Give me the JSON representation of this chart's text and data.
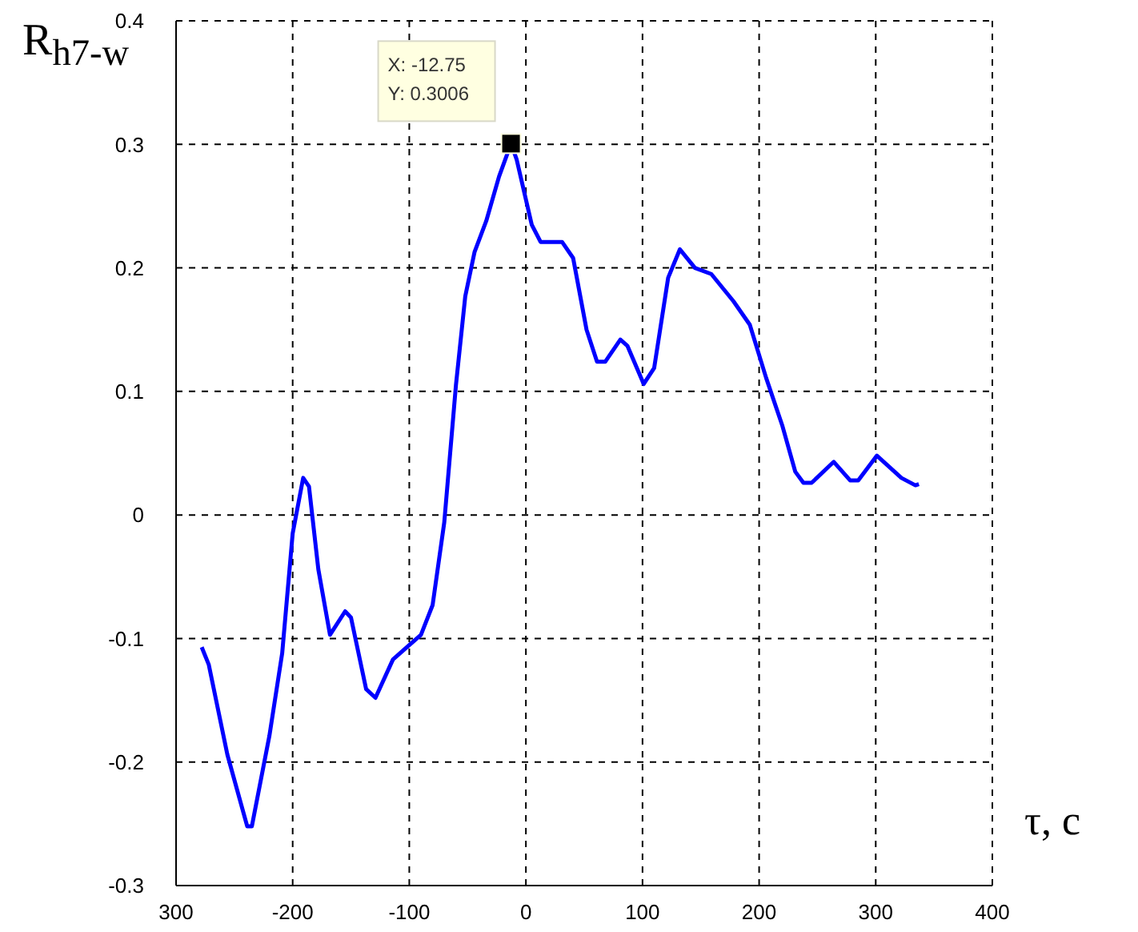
{
  "chart_data": {
    "type": "line",
    "ylabel": "R$_{h7-w}$",
    "xlabel": "τ, c",
    "x": [
      -278,
      -272,
      -256,
      -239,
      -235,
      -220,
      -209,
      -200,
      -191,
      -186,
      -178,
      -168,
      -155,
      -150,
      -137,
      -129,
      -114,
      -90,
      -80,
      -70,
      -60,
      -52,
      -44,
      -34,
      -23,
      -12.75,
      -8,
      5,
      12.6,
      31,
      40.5,
      52,
      61,
      68,
      81,
      87,
      101,
      110,
      122,
      132,
      145,
      159,
      178,
      192,
      206,
      220,
      231,
      238,
      245,
      264,
      278,
      285,
      301,
      322,
      334,
      337
    ],
    "series": [
      {
        "color": "#0000ff",
        "values": [
          -0.107,
          -0.121,
          -0.194,
          -0.252,
          -0.252,
          -0.179,
          -0.112,
          -0.015,
          0.03,
          0.023,
          -0.044,
          -0.097,
          -0.078,
          -0.083,
          -0.141,
          -0.148,
          -0.117,
          -0.097,
          -0.073,
          -0.006,
          0.105,
          0.177,
          0.213,
          0.238,
          0.274,
          0.3006,
          0.288,
          0.235,
          0.221,
          0.221,
          0.208,
          0.15,
          0.124,
          0.124,
          0.142,
          0.137,
          0.106,
          0.119,
          0.192,
          0.215,
          0.2,
          0.195,
          0.173,
          0.154,
          0.111,
          0.072,
          0.035,
          0.026,
          0.026,
          0.043,
          0.028,
          0.028,
          0.048,
          0.03,
          0.024,
          0.025
        ]
      }
    ],
    "xlim": [
      -300,
      400
    ],
    "xticks": [
      {
        "value": -300,
        "label": "300"
      },
      -200,
      -100,
      0,
      100,
      200,
      300,
      400
    ],
    "ylim": [
      -0.3,
      0.4
    ],
    "yticks": [
      -0.3,
      -0.2,
      -0.1,
      0,
      0.1,
      0.2,
      0.3,
      0.4
    ],
    "grid": true,
    "marker": "none",
    "line_style": "solid",
    "legend": false,
    "annotations": [
      {
        "text": "X: -12.75\nY: 0.3006",
        "x": -12.75,
        "y": 0.3006
      }
    ]
  }
}
